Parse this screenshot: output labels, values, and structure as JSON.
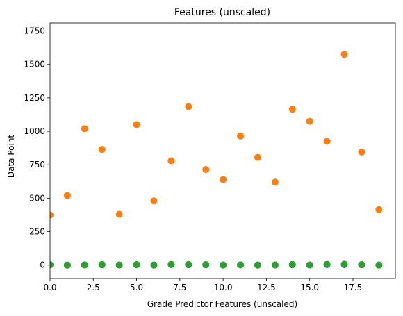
{
  "chart_data": {
    "type": "scatter",
    "title": "Features (unscaled)",
    "xlabel": "Grade Predictor Features (unscaled)",
    "ylabel": "Data Point",
    "xlim": [
      0,
      19.95
    ],
    "ylim": [
      -100,
      1810
    ],
    "xticks": [
      0,
      2.5,
      5,
      7.5,
      10,
      12.5,
      15,
      17.5
    ],
    "xtick_labels": [
      "0.0",
      "2.5",
      "5.0",
      "7.5",
      "10.0",
      "12.5",
      "15.0",
      "17.5"
    ],
    "yticks": [
      0,
      250,
      500,
      750,
      1000,
      1250,
      1500,
      1750
    ],
    "ytick_labels": [
      "0",
      "250",
      "500",
      "750",
      "1000",
      "1250",
      "1500",
      "1750"
    ],
    "grid": false,
    "legend": false,
    "series": [
      {
        "color": "#1f77b4",
        "x": [
          0,
          1,
          2,
          3,
          4,
          5,
          6,
          7,
          8,
          9,
          10,
          11,
          12,
          13,
          14,
          15,
          16,
          17,
          18,
          19
        ],
        "y": [
          3,
          1,
          2,
          3,
          1,
          3,
          1,
          4,
          3,
          3,
          1,
          2,
          1,
          1,
          3,
          1,
          4,
          4,
          3,
          1
        ]
      },
      {
        "color": "#ff7f0e",
        "x": [
          0,
          1,
          2,
          3,
          4,
          5,
          6,
          7,
          8,
          9,
          10,
          11,
          12,
          13,
          14,
          15,
          16,
          17,
          18,
          19
        ],
        "y": [
          375,
          520,
          1020,
          865,
          380,
          1050,
          480,
          780,
          1185,
          715,
          640,
          965,
          805,
          620,
          1165,
          1075,
          925,
          1575,
          845,
          415
        ]
      },
      {
        "color": "#2ca02c",
        "x": [
          0,
          1,
          2,
          3,
          4,
          5,
          6,
          7,
          8,
          9,
          10,
          11,
          12,
          13,
          14,
          15,
          16,
          17,
          18,
          19
        ],
        "y": [
          3,
          0,
          1,
          4,
          1,
          4,
          0,
          6,
          5,
          4,
          0,
          2,
          0,
          1,
          5,
          1,
          6,
          7,
          4,
          0
        ]
      }
    ]
  }
}
